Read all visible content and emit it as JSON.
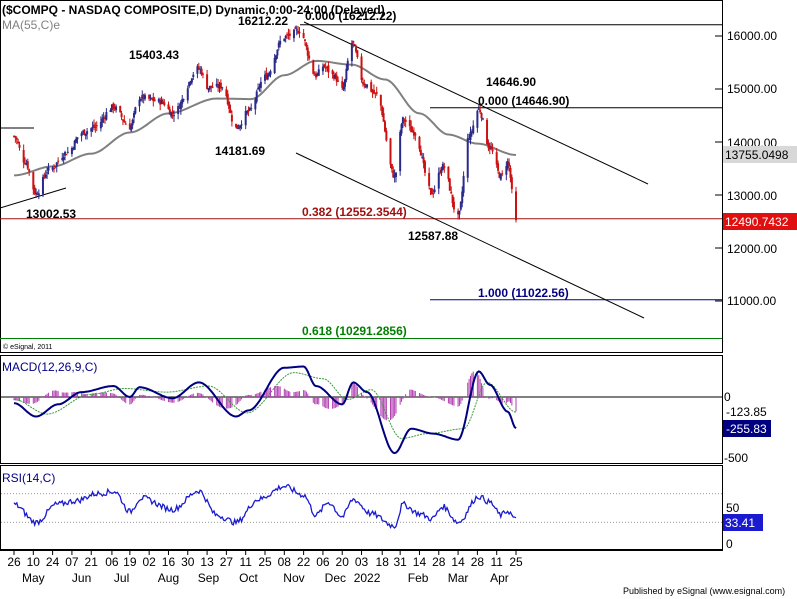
{
  "title": "($COMPQ - NASDAQ COMPOSITE,D) Dynamic,0:00-24:00 (Delayed)",
  "ma_label": "MA(55,C)e",
  "copyright": "© eSignal, 2011",
  "publisher": "Published by eSignal (www.esignal.com)",
  "colors": {
    "bull": "#2a2a8a",
    "bear": "#cc1111",
    "ma": "#808080",
    "macd": "#000080",
    "signal": "#3a9a3a",
    "hist": "#b040b0",
    "rsi": "#1a1ad0",
    "fib_red": "#a01010",
    "fib_blue": "#000080",
    "fib_green": "#008000",
    "current_price_bg": "#e01010"
  },
  "annotations": {
    "h1": "16212.22",
    "h2": "15403.43",
    "h3": "14646.90",
    "l1": "14181.69",
    "l2": "13002.53",
    "l3": "12587.88",
    "fib0_top": "0.000 (16212.22)",
    "fib0_mid": "0.000 (14646.90)",
    "fib382": "0.382 (12552.3544)",
    "fib100": "1.000 (11022.56)",
    "fib618": "0.618 (10291.2856)"
  },
  "price_axis": {
    "ticks": [
      "16000.00",
      "15000.00",
      "14000.00",
      "13000.00",
      "12000.00",
      "11000.00"
    ],
    "ma_tag": "13755.0498",
    "price_tag": "12490.7432"
  },
  "macd_panel": {
    "label": "MACD(12,26,9,C)",
    "ticks": [
      "0",
      "-500"
    ],
    "signal_tag": "-123.85",
    "macd_tag": "-255.83"
  },
  "rsi_panel": {
    "label": "RSI(14,C)",
    "ticks": [
      "50",
      "0"
    ],
    "rsi_tag": "33.41"
  },
  "x_axis": {
    "days": [
      "26",
      "10",
      "24",
      "07",
      "21",
      "06",
      "19",
      "02",
      "16",
      "30",
      "13",
      "27",
      "11",
      "25",
      "08",
      "22",
      "06",
      "20",
      "03",
      "18",
      "31",
      "14",
      "28",
      "14",
      "28",
      "11",
      "25"
    ],
    "months": [
      "May",
      "Jun",
      "Jul",
      "Aug",
      "Sep",
      "Oct",
      "Nov",
      "Dec",
      "2022",
      "Feb",
      "Mar",
      "Apr"
    ]
  },
  "chart_data": {
    "type": "candlestick",
    "symbol": "$COMPQ",
    "interval": "D",
    "price_range": [
      10100,
      16500
    ],
    "anchors": [
      {
        "date": "2021-04-26",
        "close": 14110
      },
      {
        "date": "2021-05-04",
        "close": 13630
      },
      {
        "date": "2021-05-12",
        "close": 13030
      },
      {
        "date": "2021-05-21",
        "close": 13470
      },
      {
        "date": "2021-06-04",
        "close": 13810
      },
      {
        "date": "2021-06-14",
        "close": 14170
      },
      {
        "date": "2021-06-23",
        "close": 14270
      },
      {
        "date": "2021-07-07",
        "close": 14660
      },
      {
        "date": "2021-07-19",
        "close": 14280
      },
      {
        "date": "2021-07-26",
        "close": 14840
      },
      {
        "date": "2021-08-11",
        "close": 14760
      },
      {
        "date": "2021-08-19",
        "close": 14540
      },
      {
        "date": "2021-09-07",
        "close": 15390
      },
      {
        "date": "2021-09-14",
        "close": 15030
      },
      {
        "date": "2021-09-24",
        "close": 15050
      },
      {
        "date": "2021-10-04",
        "close": 14260
      },
      {
        "date": "2021-10-13",
        "close": 14570
      },
      {
        "date": "2021-10-25",
        "close": 15230
      },
      {
        "date": "2021-11-08",
        "close": 15980
      },
      {
        "date": "2021-11-19",
        "close": 16100
      },
      {
        "date": "2021-12-01",
        "close": 15250
      },
      {
        "date": "2021-12-06",
        "close": 15430
      },
      {
        "date": "2021-12-14",
        "close": 15250
      },
      {
        "date": "2021-12-20",
        "close": 14980
      },
      {
        "date": "2021-12-27",
        "close": 15870
      },
      {
        "date": "2022-01-05",
        "close": 15100
      },
      {
        "date": "2022-01-14",
        "close": 14890
      },
      {
        "date": "2022-01-27",
        "close": 13350
      },
      {
        "date": "2022-02-02",
        "close": 14420
      },
      {
        "date": "2022-02-10",
        "close": 14180
      },
      {
        "date": "2022-02-23",
        "close": 13040
      },
      {
        "date": "2022-03-03",
        "close": 13540
      },
      {
        "date": "2022-03-14",
        "close": 12580
      },
      {
        "date": "2022-03-22",
        "close": 14110
      },
      {
        "date": "2022-03-29",
        "close": 14620
      },
      {
        "date": "2022-04-06",
        "close": 13890
      },
      {
        "date": "2022-04-14",
        "close": 13350
      },
      {
        "date": "2022-04-19",
        "close": 13620
      },
      {
        "date": "2022-04-25",
        "close": 12490
      }
    ],
    "ma55": [
      {
        "date": "2021-04-26",
        "value": 13370
      },
      {
        "date": "2021-05-24",
        "value": 13540
      },
      {
        "date": "2021-06-21",
        "value": 13780
      },
      {
        "date": "2021-07-19",
        "value": 14180
      },
      {
        "date": "2021-08-16",
        "value": 14540
      },
      {
        "date": "2021-09-20",
        "value": 14820
      },
      {
        "date": "2021-10-15",
        "value": 14810
      },
      {
        "date": "2021-11-08",
        "value": 15260
      },
      {
        "date": "2021-12-01",
        "value": 15530
      },
      {
        "date": "2021-12-27",
        "value": 15460
      },
      {
        "date": "2022-01-20",
        "value": 15180
      },
      {
        "date": "2022-02-14",
        "value": 14540
      },
      {
        "date": "2022-03-07",
        "value": 14140
      },
      {
        "date": "2022-03-28",
        "value": 13970
      },
      {
        "date": "2022-04-25",
        "value": 13755.0498
      }
    ],
    "fib_levels": [
      {
        "ratio": 0.0,
        "value": 16212.22
      },
      {
        "ratio": 0.0,
        "value": 14646.9
      },
      {
        "ratio": 0.382,
        "value": 12552.3544
      },
      {
        "ratio": 1.0,
        "value": 11022.56
      },
      {
        "ratio": 0.618,
        "value": 10291.2856
      }
    ],
    "swing_points": [
      {
        "date": "2021-05-12",
        "value": 13002.53
      },
      {
        "date": "2021-09-07",
        "value": 15403.43
      },
      {
        "date": "2021-10-04",
        "value": 14181.69
      },
      {
        "date": "2021-11-19",
        "value": 16212.22
      },
      {
        "date": "2022-03-14",
        "value": 12587.88
      },
      {
        "date": "2022-03-29",
        "value": 14646.9
      }
    ],
    "last_price": 12490.7432,
    "ma_last": 13755.0498,
    "macd": {
      "range": [
        -600,
        350
      ],
      "line": [
        {
          "date": "2021-04-26",
          "value": -50
        },
        {
          "date": "2021-05-12",
          "value": -160
        },
        {
          "date": "2021-05-28",
          "value": -60
        },
        {
          "date": "2021-06-14",
          "value": 40
        },
        {
          "date": "2021-07-07",
          "value": 90
        },
        {
          "date": "2021-07-19",
          "value": 0
        },
        {
          "date": "2021-07-26",
          "value": 80
        },
        {
          "date": "2021-08-19",
          "value": -10
        },
        {
          "date": "2021-09-07",
          "value": 120
        },
        {
          "date": "2021-10-04",
          "value": -160
        },
        {
          "date": "2021-10-13",
          "value": -110
        },
        {
          "date": "2021-11-08",
          "value": 240
        },
        {
          "date": "2021-11-22",
          "value": 250
        },
        {
          "date": "2021-12-01",
          "value": 90
        },
        {
          "date": "2021-12-20",
          "value": -60
        },
        {
          "date": "2021-12-28",
          "value": 120
        },
        {
          "date": "2022-01-07",
          "value": 40
        },
        {
          "date": "2022-01-27",
          "value": -460
        },
        {
          "date": "2022-02-08",
          "value": -260
        },
        {
          "date": "2022-02-24",
          "value": -300
        },
        {
          "date": "2022-03-14",
          "value": -350
        },
        {
          "date": "2022-03-29",
          "value": 210
        },
        {
          "date": "2022-04-06",
          "value": 100
        },
        {
          "date": "2022-04-19",
          "value": -120
        },
        {
          "date": "2022-04-25",
          "value": -255.83
        }
      ],
      "signal": [
        {
          "date": "2021-04-26",
          "value": -20
        },
        {
          "date": "2021-05-20",
          "value": -140
        },
        {
          "date": "2021-06-20",
          "value": 20
        },
        {
          "date": "2021-07-15",
          "value": 70
        },
        {
          "date": "2021-08-15",
          "value": 40
        },
        {
          "date": "2021-09-14",
          "value": 90
        },
        {
          "date": "2021-10-12",
          "value": -130
        },
        {
          "date": "2021-11-15",
          "value": 200
        },
        {
          "date": "2021-12-06",
          "value": 150
        },
        {
          "date": "2021-12-24",
          "value": -20
        },
        {
          "date": "2022-01-10",
          "value": 60
        },
        {
          "date": "2022-02-01",
          "value": -340
        },
        {
          "date": "2022-02-20",
          "value": -300
        },
        {
          "date": "2022-03-18",
          "value": -260
        },
        {
          "date": "2022-04-04",
          "value": 120
        },
        {
          "date": "2022-04-25",
          "value": -123.85
        }
      ],
      "last_macd": -255.83,
      "last_signal": -123.85
    },
    "rsi": {
      "range": [
        0,
        100
      ],
      "last": 33.41,
      "line": [
        {
          "date": "2021-04-26",
          "value": 55
        },
        {
          "date": "2021-05-12",
          "value": 30
        },
        {
          "date": "2021-05-27",
          "value": 55
        },
        {
          "date": "2021-06-10",
          "value": 60
        },
        {
          "date": "2021-06-25",
          "value": 70
        },
        {
          "date": "2021-07-08",
          "value": 73
        },
        {
          "date": "2021-07-19",
          "value": 45
        },
        {
          "date": "2021-07-27",
          "value": 64
        },
        {
          "date": "2021-08-19",
          "value": 48
        },
        {
          "date": "2021-09-07",
          "value": 74
        },
        {
          "date": "2021-09-20",
          "value": 40
        },
        {
          "date": "2021-10-04",
          "value": 30
        },
        {
          "date": "2021-10-20",
          "value": 62
        },
        {
          "date": "2021-11-08",
          "value": 80
        },
        {
          "date": "2021-11-22",
          "value": 68
        },
        {
          "date": "2021-12-01",
          "value": 40
        },
        {
          "date": "2021-12-10",
          "value": 58
        },
        {
          "date": "2021-12-20",
          "value": 38
        },
        {
          "date": "2021-12-28",
          "value": 62
        },
        {
          "date": "2022-01-10",
          "value": 42
        },
        {
          "date": "2022-01-27",
          "value": 25
        },
        {
          "date": "2022-02-02",
          "value": 55
        },
        {
          "date": "2022-02-14",
          "value": 42
        },
        {
          "date": "2022-02-23",
          "value": 35
        },
        {
          "date": "2022-03-03",
          "value": 52
        },
        {
          "date": "2022-03-14",
          "value": 30
        },
        {
          "date": "2022-03-29",
          "value": 66
        },
        {
          "date": "2022-04-06",
          "value": 58
        },
        {
          "date": "2022-04-14",
          "value": 40
        },
        {
          "date": "2022-04-19",
          "value": 46
        },
        {
          "date": "2022-04-25",
          "value": 33.41
        }
      ]
    }
  }
}
